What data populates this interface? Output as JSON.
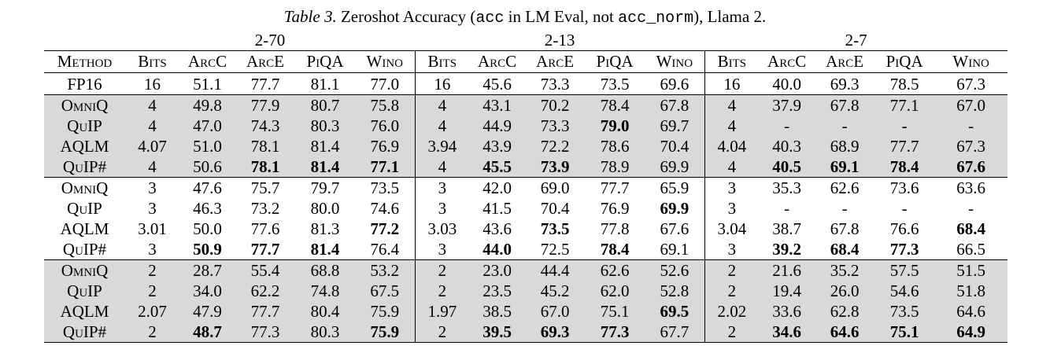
{
  "caption": {
    "label": "Table 3.",
    "pre": " Zeroshot Accuracy (",
    "code1": "acc",
    "mid": " in LM Eval, not ",
    "code2": "acc_norm",
    "post": "), Llama 2."
  },
  "groups": [
    "2-70",
    "2-13",
    "2-7"
  ],
  "columns": [
    "Method",
    "Bits",
    "ArcC",
    "ArcE",
    "PiQA",
    "Wino",
    "Bits",
    "ArcC",
    "ArcE",
    "PiQA",
    "Wino",
    "Bits",
    "ArcC",
    "ArcE",
    "PiQA",
    "Wino"
  ],
  "rows": [
    {
      "shade": false,
      "cells": [
        "FP16",
        "16",
        "51.1",
        "77.7",
        "81.1",
        "77.0",
        "16",
        "45.6",
        "73.3",
        "73.5",
        "69.6",
        "16",
        "40.0",
        "69.3",
        "78.5",
        "67.3"
      ],
      "bold": []
    },
    {
      "shade": true,
      "cells": [
        "OmniQ",
        "4",
        "49.8",
        "77.9",
        "80.7",
        "75.8",
        "4",
        "43.1",
        "70.2",
        "78.4",
        "67.8",
        "4",
        "37.9",
        "67.8",
        "77.1",
        "67.0"
      ],
      "bold": []
    },
    {
      "shade": true,
      "cells": [
        "QuIP",
        "4",
        "47.0",
        "74.3",
        "80.3",
        "76.0",
        "4",
        "44.9",
        "73.3",
        "79.0",
        "69.7",
        "4",
        "-",
        "-",
        "-",
        "-"
      ],
      "bold": [
        9
      ]
    },
    {
      "shade": true,
      "cells": [
        "AQLM",
        "4.07",
        "51.0",
        "78.1",
        "81.4",
        "76.9",
        "3.94",
        "43.9",
        "72.2",
        "78.6",
        "70.4",
        "4.04",
        "40.3",
        "68.9",
        "77.7",
        "67.3"
      ],
      "bold": []
    },
    {
      "shade": true,
      "cells": [
        "QuIP#",
        "4",
        "50.6",
        "78.1",
        "81.4",
        "77.1",
        "4",
        "45.5",
        "73.9",
        "78.9",
        "69.9",
        "4",
        "40.5",
        "69.1",
        "78.4",
        "67.6"
      ],
      "bold": [
        3,
        4,
        5,
        7,
        8,
        12,
        13,
        14,
        15
      ]
    },
    {
      "shade": false,
      "cells": [
        "OmniQ",
        "3",
        "47.6",
        "75.7",
        "79.7",
        "73.5",
        "3",
        "42.0",
        "69.0",
        "77.7",
        "65.9",
        "3",
        "35.3",
        "62.6",
        "73.6",
        "63.6"
      ],
      "bold": []
    },
    {
      "shade": false,
      "cells": [
        "QuIP",
        "3",
        "46.3",
        "73.2",
        "80.0",
        "74.6",
        "3",
        "41.5",
        "70.4",
        "76.9",
        "69.9",
        "3",
        "-",
        "-",
        "-",
        "-"
      ],
      "bold": [
        10
      ]
    },
    {
      "shade": false,
      "cells": [
        "AQLM",
        "3.01",
        "50.0",
        "77.6",
        "81.3",
        "77.2",
        "3.03",
        "43.6",
        "73.5",
        "77.8",
        "67.6",
        "3.04",
        "38.7",
        "67.8",
        "76.6",
        "68.4"
      ],
      "bold": [
        5,
        8,
        15
      ]
    },
    {
      "shade": false,
      "cells": [
        "QuIP#",
        "3",
        "50.9",
        "77.7",
        "81.4",
        "76.4",
        "3",
        "44.0",
        "72.5",
        "78.4",
        "69.1",
        "3",
        "39.2",
        "68.4",
        "77.3",
        "66.5"
      ],
      "bold": [
        2,
        3,
        4,
        7,
        9,
        12,
        13,
        14
      ]
    },
    {
      "shade": true,
      "cells": [
        "OmniQ",
        "2",
        "28.7",
        "55.4",
        "68.8",
        "53.2",
        "2",
        "23.0",
        "44.4",
        "62.6",
        "52.6",
        "2",
        "21.6",
        "35.2",
        "57.5",
        "51.5"
      ],
      "bold": []
    },
    {
      "shade": true,
      "cells": [
        "QuIP",
        "2",
        "34.0",
        "62.2",
        "74.8",
        "67.5",
        "2",
        "23.5",
        "45.2",
        "62.0",
        "52.8",
        "2",
        "19.4",
        "26.0",
        "54.6",
        "51.8"
      ],
      "bold": []
    },
    {
      "shade": true,
      "cells": [
        "AQLM",
        "2.07",
        "47.9",
        "77.7",
        "80.4",
        "75.9",
        "1.97",
        "38.5",
        "67.0",
        "75.1",
        "69.5",
        "2.02",
        "33.6",
        "62.8",
        "73.5",
        "64.6"
      ],
      "bold": [
        10
      ]
    },
    {
      "shade": true,
      "cells": [
        "QuIP#",
        "2",
        "48.7",
        "77.3",
        "80.3",
        "75.9",
        "2",
        "39.5",
        "69.3",
        "77.3",
        "67.7",
        "2",
        "34.6",
        "64.6",
        "75.1",
        "64.9"
      ],
      "bold": [
        2,
        5,
        7,
        8,
        9,
        12,
        13,
        14,
        15
      ]
    }
  ]
}
